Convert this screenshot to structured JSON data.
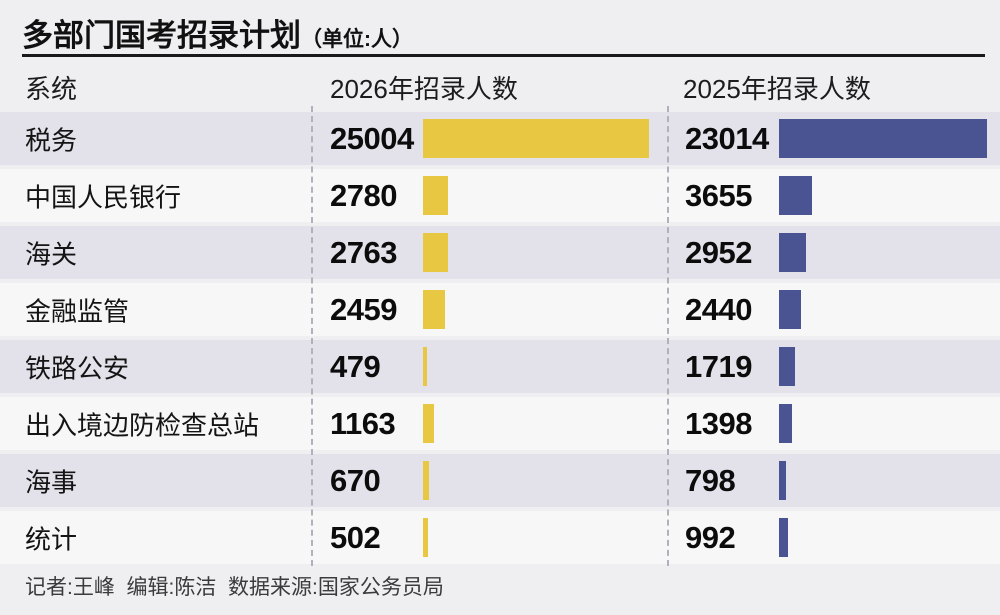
{
  "title": {
    "main": "多部门国考招录计划",
    "unit": "（单位:人）"
  },
  "table": {
    "headers": [
      "系统",
      "2026年招录人数",
      "2025年招录人数"
    ]
  },
  "chart_data": {
    "type": "bar",
    "orientation": "horizontal",
    "title": "多部门国考招录计划（单位:人）",
    "unit_label": "人",
    "categories": [
      "税务",
      "中国人民银行",
      "海关",
      "金融监管",
      "铁路公安",
      "出入境边防检查总站",
      "海事",
      "统计"
    ],
    "series": [
      {
        "name": "2026年招录人数",
        "color": "#e8c743",
        "values": [
          25004,
          2780,
          2763,
          2459,
          479,
          1163,
          670,
          502
        ]
      },
      {
        "name": "2025年招录人数",
        "color": "#4a5492",
        "values": [
          23014,
          3655,
          2952,
          2440,
          1719,
          1398,
          798,
          992
        ]
      }
    ],
    "value_labels_shown": true,
    "axes_shown": false,
    "legend_position": "column-headers"
  },
  "footer": {
    "credits": "记者:王峰  编辑:陈洁  数据来源:国家公务员局"
  },
  "colors": {
    "bar_2026": "#e8c743",
    "bar_2025": "#4a5492",
    "row_odd": "#e3e2eb",
    "row_even": "#f7f7f7",
    "page_bg": "#efeef0",
    "divider": "#b2b0bb"
  }
}
